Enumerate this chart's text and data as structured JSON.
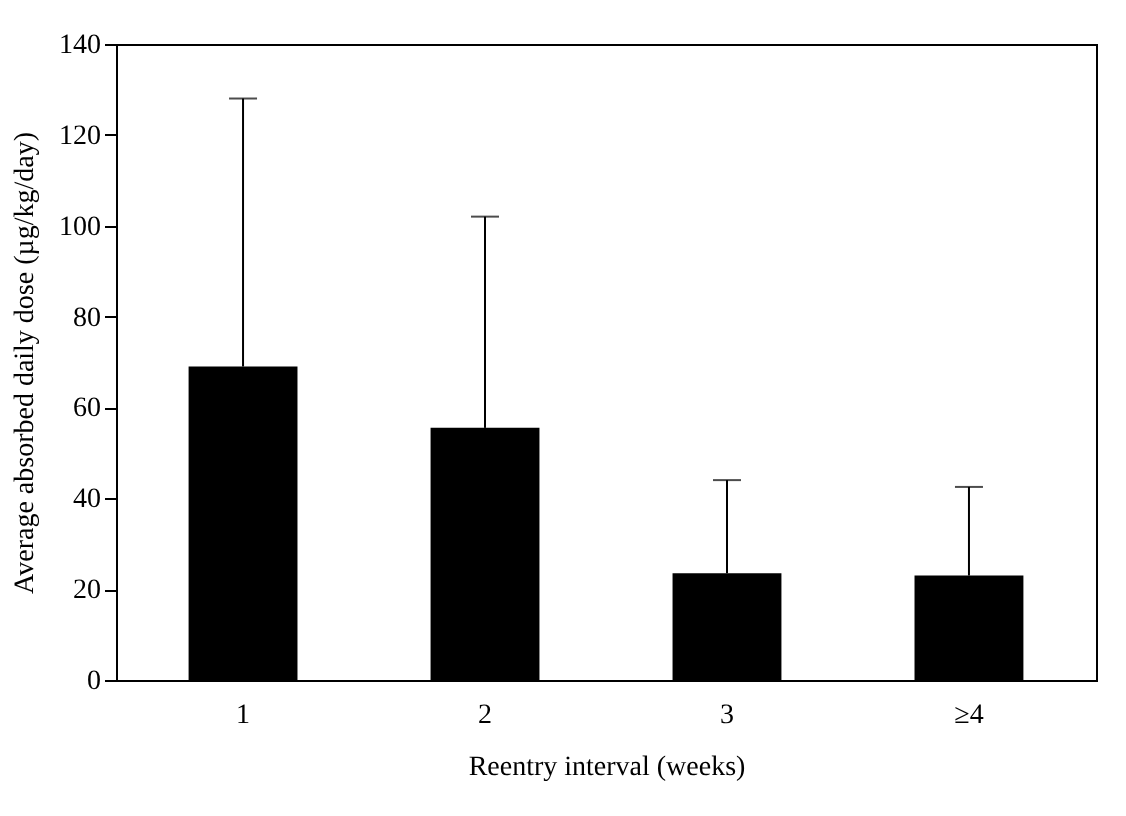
{
  "chart_data": {
    "type": "bar",
    "xlabel": "Reentry interval (weeks)",
    "ylabel": "Average absorbed daily dose (µg/kg/day)",
    "categories": [
      "1",
      "2",
      "3",
      "≥4"
    ],
    "values": [
      69,
      55.5,
      23.5,
      23
    ],
    "errors": [
      [
        69,
        128
      ],
      [
        55.5,
        102
      ],
      [
        23.5,
        44
      ],
      [
        23,
        42.5
      ]
    ],
    "color": "#000000",
    "ylim": [
      0,
      140
    ],
    "yticks": [
      0,
      20,
      40,
      60,
      80,
      100,
      120,
      140
    ],
    "grid": false
  }
}
